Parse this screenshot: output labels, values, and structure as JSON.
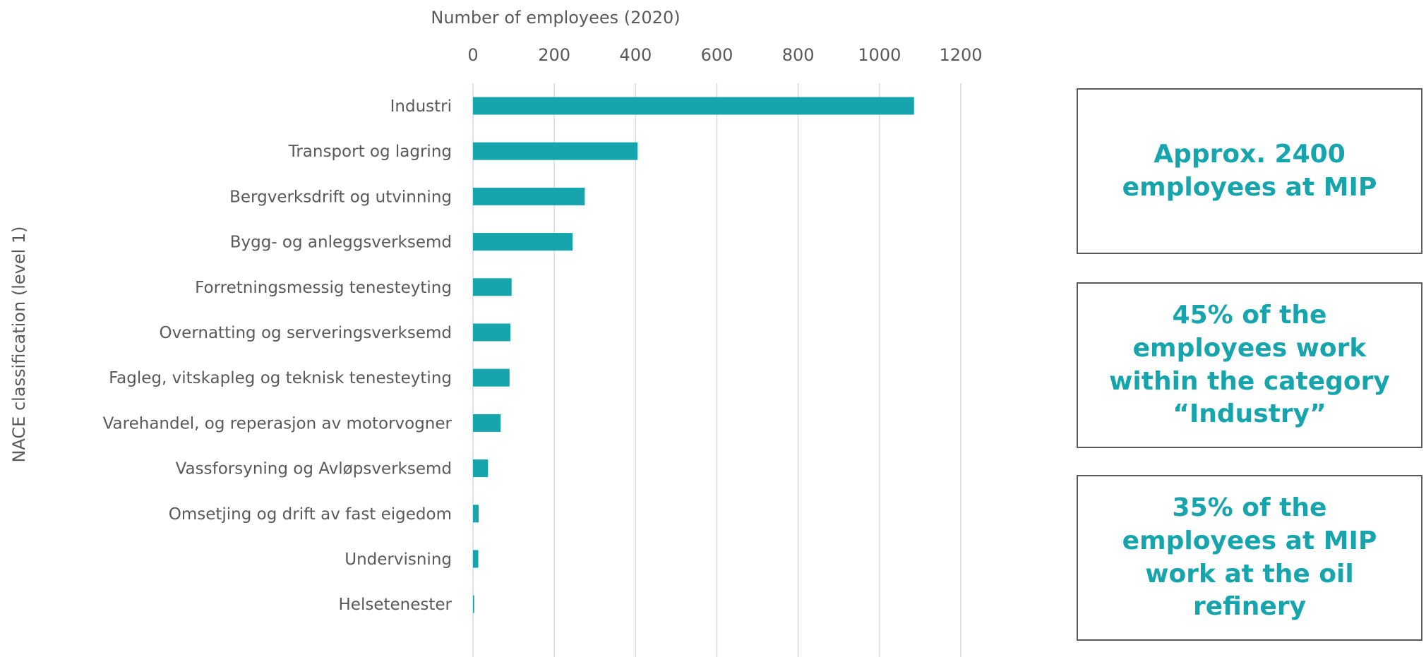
{
  "chart_data": {
    "type": "bar",
    "orientation": "horizontal",
    "title": "",
    "xlabel": "Number of employees (2020)",
    "ylabel": "NACE classification (level 1)",
    "xlim": [
      0,
      1200
    ],
    "x_ticks": [
      "0",
      "200",
      "400",
      "600",
      "800",
      "1000",
      "1200"
    ],
    "x_axis_position": "top",
    "grid": true,
    "legend": "none",
    "bar_color": "#17a5ad",
    "grid_color": "#d9d9d9",
    "categories": [
      "Industri",
      "Transport og lagring",
      "Bergverksdrift og utvinning",
      "Bygg- og anleggsverksemd",
      "Forretningsmessig tenesteyting",
      "Overnatting og serveringsverksemd",
      "Fagleg, vitskapleg og teknisk tenesteyting",
      "Varehandel, og reperasjon av motorvogner",
      "Vassforsyning og Avløpsverksemd",
      "Omsetjing og drift av fast eigedom",
      "Undervisning",
      "Helsetenester"
    ],
    "values": [
      1085,
      405,
      275,
      245,
      95,
      92,
      90,
      68,
      37,
      14,
      13,
      3
    ]
  },
  "callouts": [
    {
      "text": "Approx. 2400 employees at MIP"
    },
    {
      "text": "45% of the employees work within the category “Industry”"
    },
    {
      "text": "35% of the employees at MIP work at the oil refinery"
    }
  ],
  "colors": {
    "accent": "#17a5ad",
    "text": "#595959",
    "border": "#5a5a5a"
  }
}
